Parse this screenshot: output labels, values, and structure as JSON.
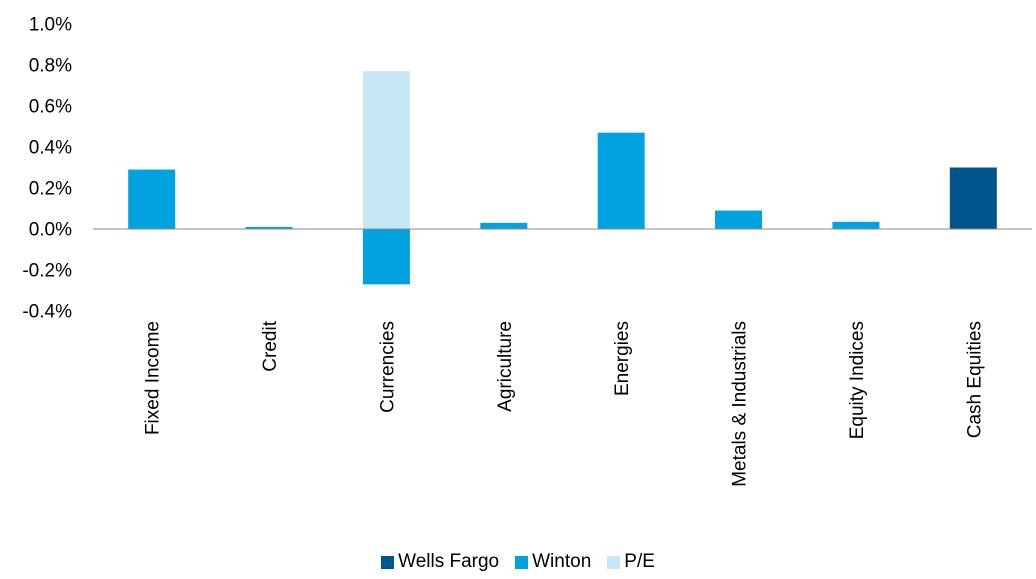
{
  "chart_data": {
    "type": "bar",
    "stacked": true,
    "categories": [
      "Fixed Income",
      "Credit",
      "Currencies",
      "Agriculture",
      "Energies",
      "Metals & Industrials",
      "Equity Indices",
      "Cash Equities"
    ],
    "series": [
      {
        "name": "Wells Fargo",
        "color": "#00558C",
        "values": [
          0,
          0,
          0,
          0,
          0,
          0,
          0,
          0.3
        ]
      },
      {
        "name": "Winton",
        "color": "#00A3E0",
        "values": [
          0.29,
          0.01,
          -0.27,
          0.03,
          0.47,
          0.09,
          0.035,
          0
        ]
      },
      {
        "name": "P/E",
        "color": "#C6E8F6",
        "values": [
          0,
          0,
          0.77,
          0,
          0,
          0,
          0,
          0
        ]
      }
    ],
    "y_ticks": [
      "1.0%",
      "0.8%",
      "0.6%",
      "0.4%",
      "0.2%",
      "0.0%",
      "-0.2%",
      "-0.4%"
    ],
    "ylim": [
      -0.4,
      1.0
    ],
    "y_unit": "%",
    "grid": false,
    "legend_position": "bottom"
  }
}
